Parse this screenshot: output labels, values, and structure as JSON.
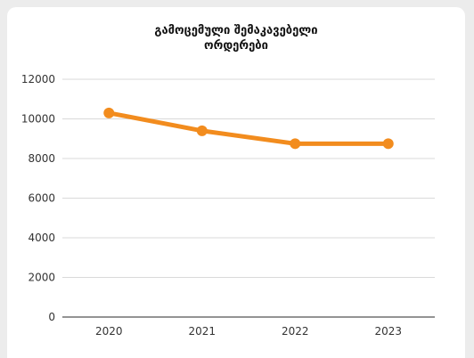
{
  "chart_data": {
    "type": "line",
    "title_lines": [
      "გამოცემული შემაკავებელი",
      "ორდერები"
    ],
    "categories": [
      "2020",
      "2021",
      "2022",
      "2023"
    ],
    "series": [
      {
        "values": [
          10300,
          9400,
          8750,
          8750
        ]
      }
    ],
    "ylim": [
      0,
      12000
    ],
    "yticks": [
      0,
      2000,
      4000,
      6000,
      8000,
      10000,
      12000
    ],
    "grid": true,
    "legend": "none",
    "line_color": "#f28c1e",
    "grid_color": "#d9d9d9",
    "axis_color": "#555555"
  }
}
